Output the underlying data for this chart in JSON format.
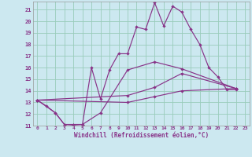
{
  "xlabel": "Windchill (Refroidissement éolien,°C)",
  "background_color": "#cce8f0",
  "grid_color": "#99ccbb",
  "line_color": "#883388",
  "xlim": [
    -0.5,
    23.5
  ],
  "ylim": [
    11,
    21.7
  ],
  "yticks": [
    11,
    12,
    13,
    14,
    15,
    16,
    17,
    18,
    19,
    20,
    21
  ],
  "xticks": [
    0,
    1,
    2,
    3,
    4,
    5,
    6,
    7,
    8,
    9,
    10,
    11,
    12,
    13,
    14,
    15,
    16,
    17,
    18,
    19,
    20,
    21,
    22,
    23
  ],
  "s1_x": [
    0,
    1,
    2,
    3,
    4,
    5,
    6,
    7,
    8,
    9,
    10,
    11,
    12,
    13,
    14,
    15,
    16,
    17,
    18,
    19,
    20,
    21,
    22
  ],
  "s1_y": [
    13.2,
    12.7,
    12.1,
    11.1,
    11.05,
    11.1,
    16.0,
    13.3,
    15.8,
    17.2,
    17.2,
    19.5,
    19.3,
    21.6,
    19.6,
    21.3,
    20.8,
    19.3,
    18.0,
    16.0,
    15.2,
    14.1,
    14.1
  ],
  "s2_x": [
    0,
    2,
    3,
    4,
    5,
    7,
    10,
    13,
    16,
    22
  ],
  "s2_y": [
    13.2,
    12.1,
    11.1,
    11.1,
    11.1,
    12.1,
    15.8,
    16.5,
    15.9,
    14.2
  ],
  "s3_x": [
    0,
    10,
    13,
    16,
    22
  ],
  "s3_y": [
    13.2,
    13.6,
    14.3,
    15.5,
    14.2
  ],
  "s4_x": [
    0,
    10,
    13,
    16,
    22
  ],
  "s4_y": [
    13.2,
    13.0,
    13.5,
    14.0,
    14.2
  ]
}
